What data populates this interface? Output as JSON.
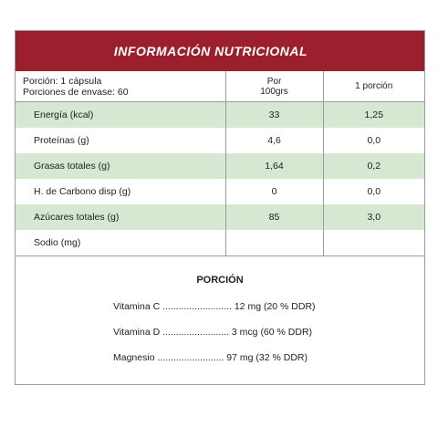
{
  "header": {
    "title": "INFORMACIÓN NUTRICIONAL"
  },
  "table_head": {
    "line1": "Porción: 1 cápsula",
    "line2": "Porciones de envase: 60",
    "col2_line1": "Por",
    "col2_line2": "100grs",
    "col3": "1 porción"
  },
  "rows": [
    {
      "name": "Energía (kcal)",
      "per100": "33",
      "perPortion": "1,25"
    },
    {
      "name": "Proteínas (g)",
      "per100": "4,6",
      "perPortion": "0,0"
    },
    {
      "name": "Grasas totales (g)",
      "per100": "1,64",
      "perPortion": "0,2"
    },
    {
      "name": "H. de Carbono disp (g)",
      "per100": "0",
      "perPortion": "0,0"
    },
    {
      "name": "Azúcares totales (g)",
      "per100": "85",
      "perPortion": "3,0"
    },
    {
      "name": "Sodio (mg)",
      "per100": "",
      "perPortion": ""
    }
  ],
  "portion": {
    "title": "PORCIÓN",
    "items": [
      "Vitamina C .......................... 12 mg (20 % DDR)",
      "Vitamina D ......................... 3 mcg (60 % DDR)",
      "Magnesio  ......................... 97 mg (32 % DDR)"
    ]
  },
  "colors": {
    "header_bg": "#9b1f2c",
    "shaded_row": "#d6e8d2",
    "border": "#9b9b9b"
  }
}
